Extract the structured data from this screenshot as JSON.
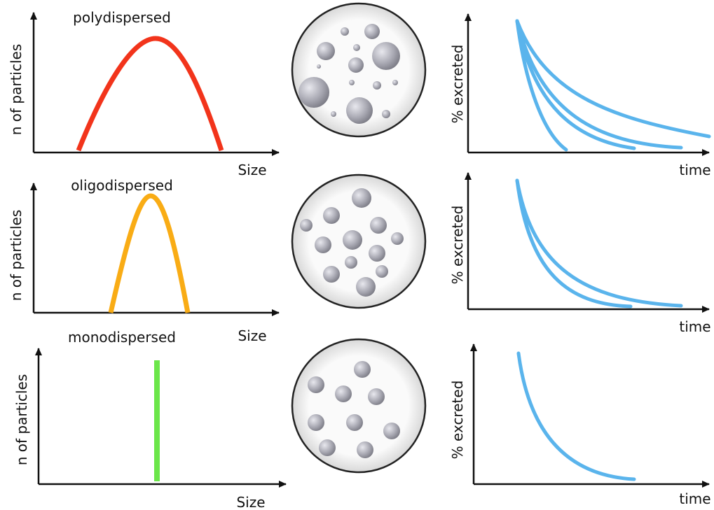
{
  "rows": [
    {
      "title": "polydispersed",
      "y_label": "n of particles",
      "x_label": "Size",
      "excretion_y_label": "% excreted",
      "excretion_x_label": "time"
    },
    {
      "title": "oligodispersed",
      "y_label": "n of particles",
      "x_label": "Size",
      "excretion_y_label": "% excreted",
      "excretion_x_label": "time"
    },
    {
      "title": "monodispersed",
      "y_label": "n of particles",
      "x_label": "Size",
      "excretion_y_label": "% excreted",
      "excretion_x_label": "time"
    }
  ]
}
